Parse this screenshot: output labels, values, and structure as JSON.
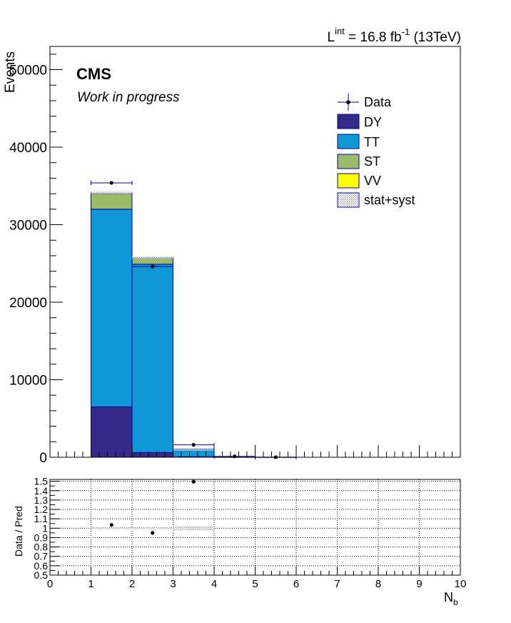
{
  "header": {
    "lumi_L": "L",
    "lumi_sup": "int",
    "lumi_eq": " = 16.8 fb",
    "lumi_exp": "-1",
    "lumi_energy": " (13TeV)",
    "cms": "CMS",
    "work": "Work in progress"
  },
  "colors": {
    "DY": "#352a87",
    "TT": "#0f97d6",
    "ST": "#9cbb6a",
    "VV": "#ffff00",
    "frame": "#000000",
    "hist_line": "#000099",
    "band": "#b0b0b0"
  },
  "chart_data": [
    {
      "type": "bar",
      "stacked": true,
      "ylabel": "Events",
      "xlabel": "",
      "xlim": [
        0,
        10
      ],
      "ylim": [
        0,
        53000
      ],
      "yticks": [
        0,
        10000,
        20000,
        30000,
        40000,
        50000
      ],
      "yticks_text": [
        "0",
        "10000",
        "20000",
        "30000",
        "40000",
        "50000"
      ],
      "bins": [
        [
          1,
          2
        ],
        [
          2,
          3
        ],
        [
          3,
          4
        ],
        [
          4,
          5
        ],
        [
          5,
          6
        ]
      ],
      "series": [
        {
          "name": "DY",
          "values": [
            6500,
            600,
            60,
            5,
            0
          ]
        },
        {
          "name": "TT",
          "values": [
            25500,
            24300,
            900,
            80,
            5
          ]
        },
        {
          "name": "ST",
          "values": [
            2000,
            800,
            80,
            10,
            1
          ]
        },
        {
          "name": "VV",
          "values": [
            150,
            80,
            10,
            1,
            0
          ]
        }
      ],
      "data": {
        "name": "Data",
        "x": [
          1.5,
          2.5,
          3.5,
          4.5,
          5.5
        ],
        "y": [
          35400,
          24600,
          1600,
          110,
          8
        ]
      },
      "band_name": "stat+syst",
      "band_rel": [
        0.005,
        0.005,
        0.01,
        0.02,
        0.05
      ],
      "legend": [
        "Data",
        "DY",
        "TT",
        "ST",
        "VV",
        "stat+syst"
      ],
      "legend_position": "top-right",
      "grid": false
    },
    {
      "type": "scatter",
      "ylabel": "Data / Pred",
      "xlabel": "N_b",
      "xlim": [
        0,
        10
      ],
      "ylim": [
        0.5,
        1.52
      ],
      "xticks": [
        0,
        1,
        2,
        3,
        4,
        5,
        6,
        7,
        8,
        9,
        10
      ],
      "xticks_text": [
        "0",
        "1",
        "2",
        "3",
        "4",
        "5",
        "6",
        "7",
        "8",
        "9",
        "10"
      ],
      "yticks": [
        0.5,
        0.6,
        0.7,
        0.8,
        0.9,
        1.0,
        1.1,
        1.2,
        1.3,
        1.4,
        1.5
      ],
      "yticks_text": [
        "0.5",
        "0.6",
        "0.7",
        "0.8",
        "0.9",
        "1",
        "1.1",
        "1.2",
        "1.3",
        "1.4",
        "1.5"
      ],
      "points": {
        "x": [
          1.5,
          2.5,
          3.5
        ],
        "y": [
          1.035,
          0.95,
          1.495
        ]
      },
      "band_half": [
        0.01,
        0.01,
        0.025
      ],
      "grid": true
    }
  ]
}
